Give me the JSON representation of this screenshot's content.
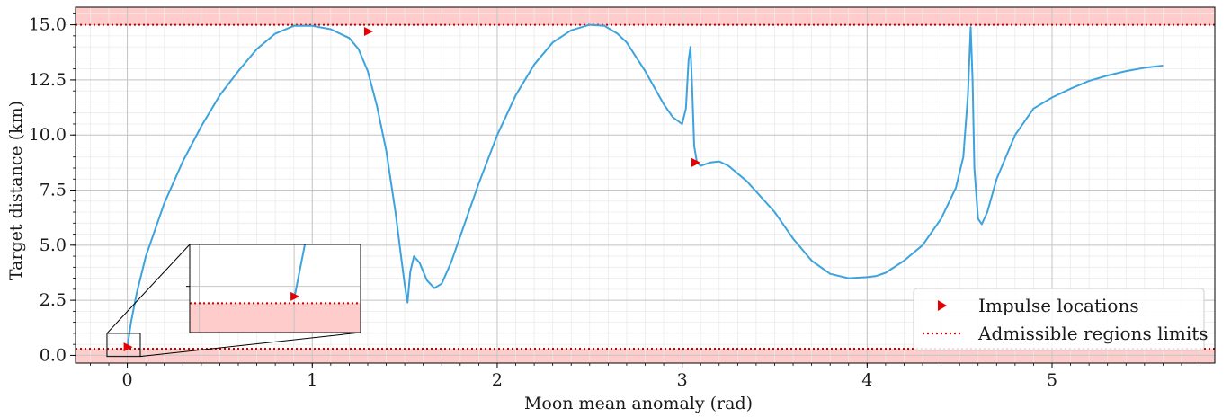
{
  "chart_data": {
    "type": "line",
    "xlabel": "Moon mean anomaly (rad)",
    "ylabel": "Target distance (km)",
    "xlim": [
      -0.28,
      5.88
    ],
    "ylim": [
      -0.35,
      15.8
    ],
    "xticks": [
      0,
      1,
      2,
      3,
      4,
      5
    ],
    "yticks": [
      0.0,
      2.5,
      5.0,
      7.5,
      10.0,
      12.5,
      15.0
    ],
    "ytick_labels": [
      "0.0",
      "2.5",
      "5.0",
      "7.5",
      "10.0",
      "12.5",
      "15.0"
    ],
    "grid": "major and minor",
    "admissible_limits": {
      "lower": 0.3,
      "upper": 15.0
    },
    "series": [
      {
        "name": "",
        "color": "#3da3dc",
        "x": [
          0,
          0.02,
          0.05,
          0.1,
          0.2,
          0.3,
          0.4,
          0.5,
          0.6,
          0.7,
          0.8,
          0.9,
          1.0,
          1.1,
          1.2,
          1.25,
          1.3,
          1.35,
          1.4,
          1.45,
          1.48,
          1.5,
          1.515,
          1.53,
          1.55,
          1.58,
          1.62,
          1.66,
          1.7,
          1.75,
          1.8,
          1.9,
          2.0,
          2.1,
          2.2,
          2.3,
          2.4,
          2.5,
          2.58,
          2.65,
          2.7,
          2.8,
          2.9,
          2.95,
          3.0,
          3.02,
          3.035,
          3.045,
          3.055,
          3.065,
          3.08,
          3.1,
          3.15,
          3.2,
          3.25,
          3.35,
          3.5,
          3.6,
          3.7,
          3.8,
          3.9,
          4.0,
          4.05,
          4.1,
          4.2,
          4.3,
          4.4,
          4.48,
          4.52,
          4.545,
          4.56,
          4.57,
          4.58,
          4.6,
          4.62,
          4.65,
          4.7,
          4.8,
          4.9,
          5.0,
          5.1,
          5.2,
          5.3,
          5.4,
          5.5,
          5.6
        ],
        "y": [
          0.35,
          1.5,
          2.8,
          4.5,
          6.9,
          8.8,
          10.4,
          11.8,
          12.9,
          13.9,
          14.6,
          14.95,
          14.95,
          14.8,
          14.4,
          13.9,
          12.9,
          11.3,
          9.3,
          6.5,
          4.5,
          3.2,
          2.4,
          3.8,
          4.5,
          4.2,
          3.4,
          3.05,
          3.25,
          4.2,
          5.4,
          7.8,
          10.0,
          11.8,
          13.2,
          14.2,
          14.75,
          15.0,
          14.95,
          14.6,
          14.2,
          12.9,
          11.4,
          10.8,
          10.5,
          11.2,
          13.4,
          14.0,
          12.0,
          9.5,
          8.75,
          8.6,
          8.75,
          8.8,
          8.6,
          7.9,
          6.5,
          5.3,
          4.3,
          3.7,
          3.5,
          3.55,
          3.6,
          3.75,
          4.3,
          5.0,
          6.2,
          7.6,
          9.0,
          11.8,
          14.9,
          12.5,
          8.5,
          6.2,
          5.95,
          6.5,
          8.0,
          10.0,
          11.2,
          11.7,
          12.1,
          12.45,
          12.7,
          12.9,
          13.05,
          13.15
        ]
      }
    ],
    "impulses": {
      "x": [
        0.0,
        1.3,
        3.07
      ],
      "y": [
        0.38,
        14.7,
        8.75
      ],
      "color": "#e60000"
    },
    "shading_color": "#ffcccc",
    "limit_line_color": "#cc0000",
    "legend": {
      "position": "bottom-right",
      "entries": [
        "Impulse locations",
        "Admissible regions limits"
      ]
    },
    "inset": {
      "xlim": [
        -0.11,
        0.07
      ],
      "ylim": [
        -0.05,
        1.0
      ]
    }
  }
}
